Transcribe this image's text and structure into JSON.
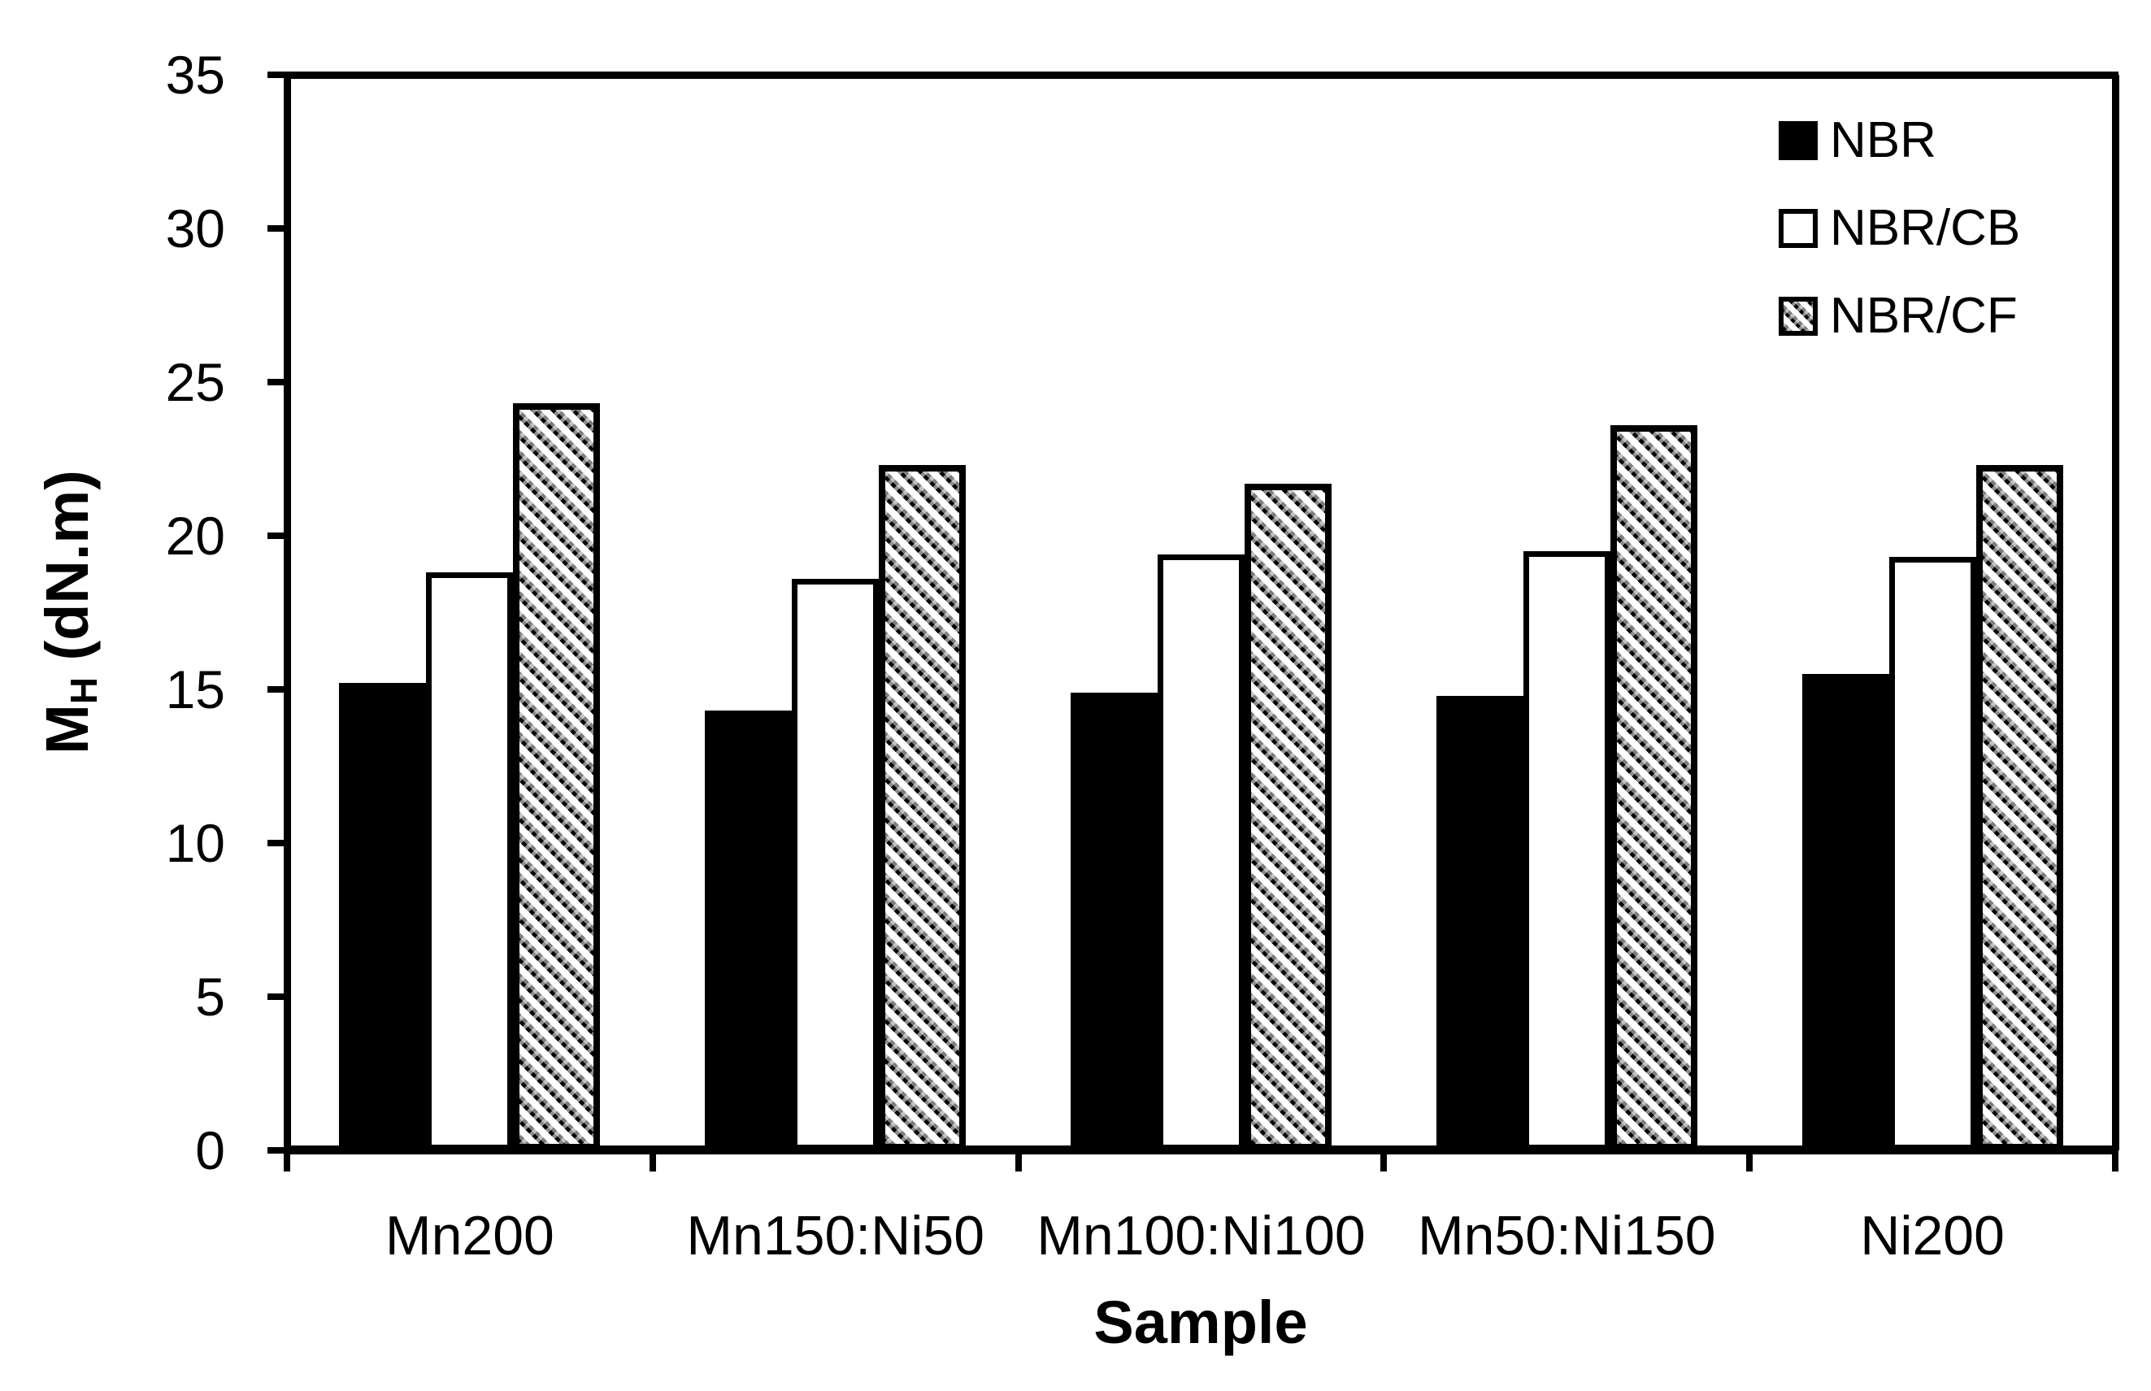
{
  "figure": {
    "background_color": "#ffffff",
    "ink_color": "#000000"
  },
  "chart_data": {
    "type": "bar",
    "title": "",
    "xlabel": "Sample",
    "ylabel": "MH (dN.m)",
    "ylabel_parts": {
      "main": "M",
      "sub": "H",
      "rest": " (dN.m)"
    },
    "categories": [
      "Mn200",
      "Mn150:Ni50",
      "Mn100:Ni100",
      "Mn50:Ni150",
      "Ni200"
    ],
    "series": [
      {
        "name": "NBR",
        "style": "solid-black",
        "values": [
          15.2,
          14.3,
          14.9,
          14.8,
          15.5
        ]
      },
      {
        "name": "NBR/CB",
        "style": "white-outline",
        "values": [
          18.8,
          18.6,
          19.4,
          19.5,
          19.3
        ]
      },
      {
        "name": "NBR/CF",
        "style": "diagonal-hatch",
        "values": [
          24.3,
          22.3,
          21.7,
          23.6,
          22.3
        ]
      }
    ],
    "ylim": [
      0,
      35
    ],
    "yticks": [
      0,
      5,
      10,
      15,
      20,
      25,
      30,
      35
    ],
    "grid": false,
    "legend_position": "top-right-inside"
  }
}
